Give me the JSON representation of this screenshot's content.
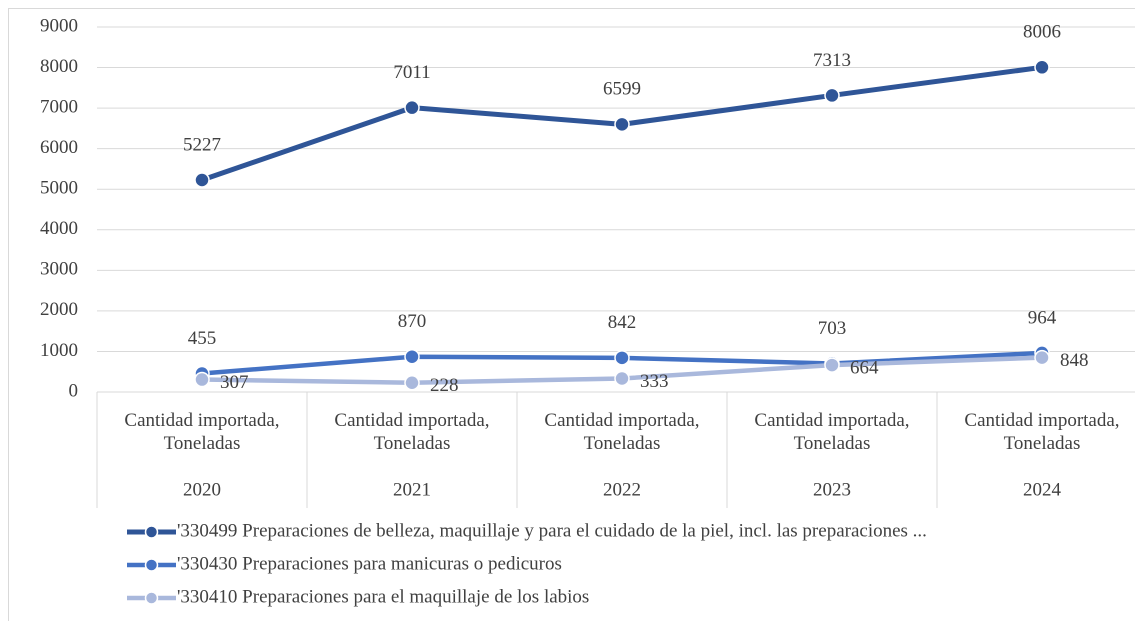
{
  "chart_data": {
    "type": "line",
    "categories": [
      "2020",
      "2021",
      "2022",
      "2023",
      "2024"
    ],
    "category_sublabels": [
      "Cantidad importada, Toneladas",
      "Cantidad importada, Toneladas",
      "Cantidad importada, Toneladas",
      "Cantidad importada, Toneladas",
      "Cantidad importada, Toneladas"
    ],
    "series": [
      {
        "name": "'330499 Preparaciones de belleza, maquillaje y para el cuidado de la piel, incl. las preparaciones ...",
        "color": "#2f5597",
        "values": [
          5227,
          7011,
          6599,
          7313,
          8006
        ]
      },
      {
        "name": "'330430 Preparaciones para manicuras o pedicuros",
        "color": "#4472c4",
        "values": [
          455,
          870,
          842,
          703,
          964
        ]
      },
      {
        "name": "'330410 Preparaciones para el maquillaje de los labios",
        "color": "#a9b8dc",
        "values": [
          307,
          228,
          333,
          664,
          848
        ]
      }
    ],
    "ylim": [
      0,
      9000
    ],
    "yticks": [
      0,
      1000,
      2000,
      3000,
      4000,
      5000,
      6000,
      7000,
      8000,
      9000
    ],
    "grid": true,
    "legend": "bottom"
  }
}
